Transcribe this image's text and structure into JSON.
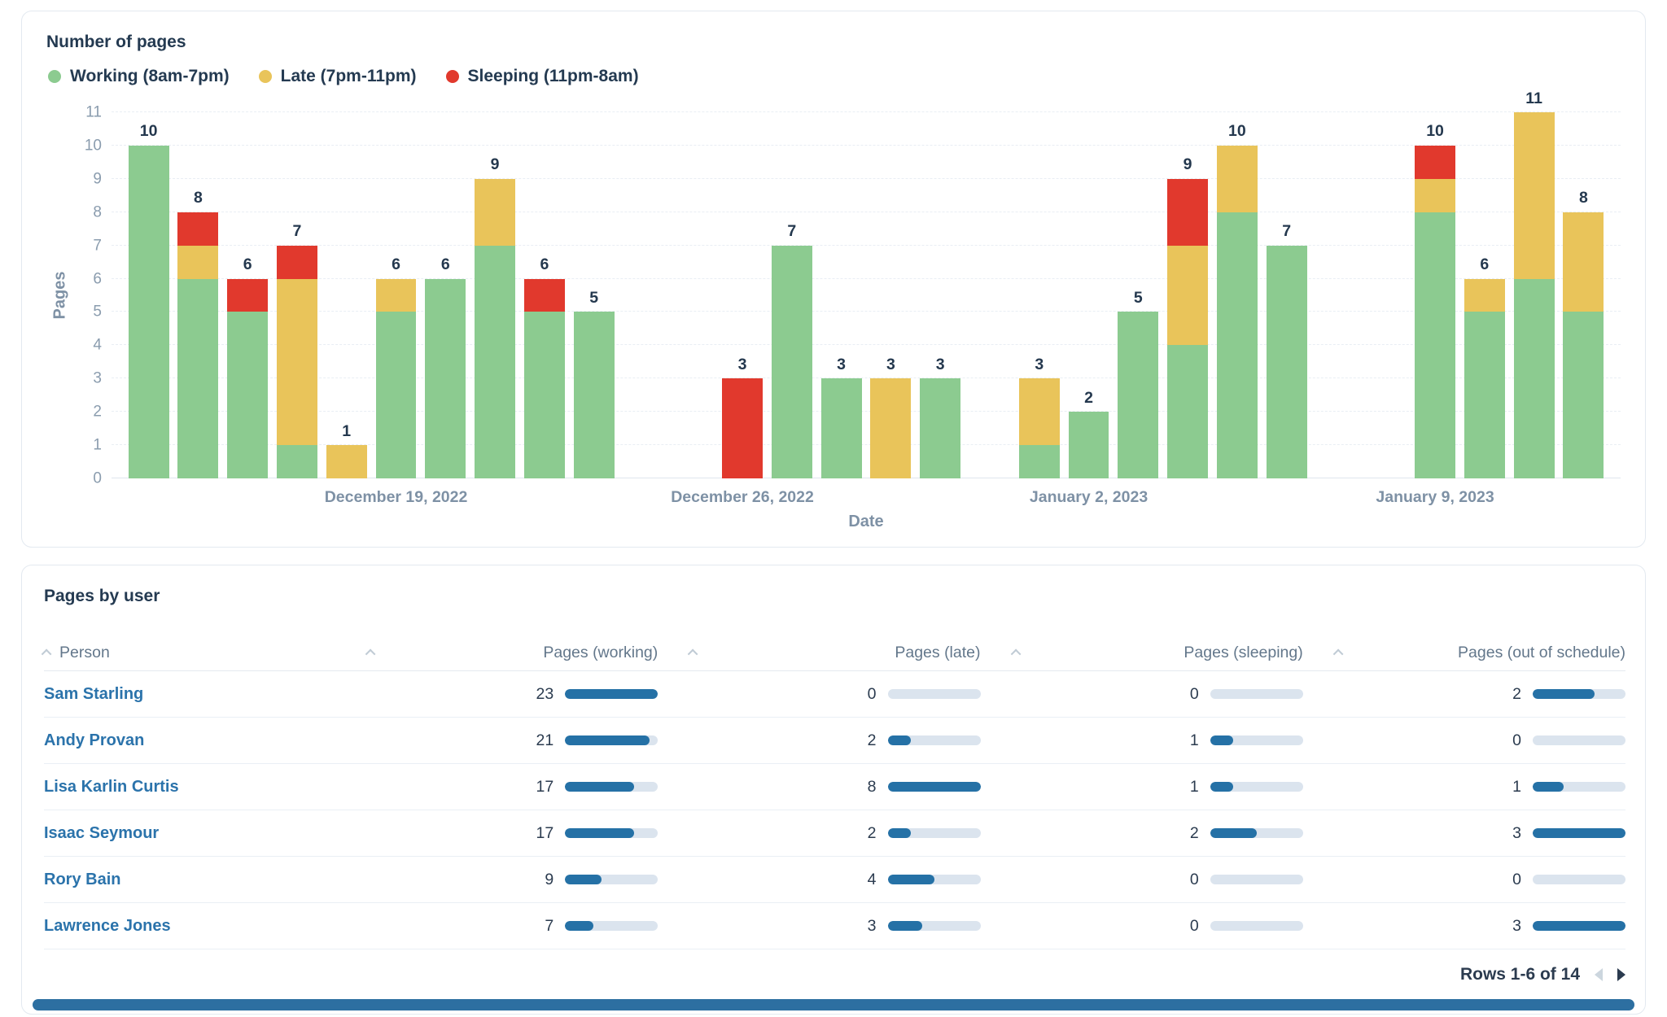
{
  "colors": {
    "working": "#8ccb90",
    "late": "#e9c45a",
    "sleeping": "#e1392d",
    "table_bar_fill": "#2571a6",
    "table_bar_track": "#dbe4ee",
    "link_blue": "#2b73ab",
    "heading_navy": "#243a51",
    "axis_gray": "#7e91a5"
  },
  "chart_panel": {
    "title": "Number of pages",
    "ylabel": "Pages",
    "xlabel": "Date",
    "legend": [
      {
        "series": "working",
        "label": "Working (8am-7pm)"
      },
      {
        "series": "late",
        "label": "Late (7pm-11pm)"
      },
      {
        "series": "sleeping",
        "label": "Sleeping (11pm-8am)"
      }
    ]
  },
  "chart_data": {
    "type": "bar",
    "stacked": true,
    "title": "Number of pages",
    "xlabel": "Date",
    "ylabel": "Pages",
    "ylim": [
      0,
      11
    ],
    "y_ticks": [
      0,
      1,
      2,
      3,
      4,
      5,
      6,
      7,
      8,
      9,
      10,
      11
    ],
    "x_slots": 30.5,
    "grid": "dashed-horizontal",
    "legend_position": "top-left",
    "series_names": [
      "Working (8am-7pm)",
      "Late (7pm-11pm)",
      "Sleeping (11pm-8am)"
    ],
    "x_ticks": [
      {
        "slot": 5,
        "label": "December 19, 2022"
      },
      {
        "slot": 12,
        "label": "December 26, 2022"
      },
      {
        "slot": 19,
        "label": "January 2, 2023"
      },
      {
        "slot": 26,
        "label": "January 9, 2023"
      }
    ],
    "bars": [
      {
        "slot": 0,
        "working": 10,
        "late": 0,
        "sleeping": 0,
        "total": 10
      },
      {
        "slot": 1,
        "working": 6,
        "late": 1,
        "sleeping": 1,
        "total": 8
      },
      {
        "slot": 2,
        "working": 5,
        "late": 0,
        "sleeping": 1,
        "total": 6
      },
      {
        "slot": 3,
        "working": 1,
        "late": 5,
        "sleeping": 1,
        "total": 7
      },
      {
        "slot": 4,
        "working": 0,
        "late": 1,
        "sleeping": 0,
        "total": 1
      },
      {
        "slot": 5,
        "working": 5,
        "late": 1,
        "sleeping": 0,
        "total": 6
      },
      {
        "slot": 6,
        "working": 6,
        "late": 0,
        "sleeping": 0,
        "total": 6
      },
      {
        "slot": 7,
        "working": 7,
        "late": 2,
        "sleeping": 0,
        "total": 9
      },
      {
        "slot": 8,
        "working": 5,
        "late": 0,
        "sleeping": 1,
        "total": 6
      },
      {
        "slot": 9,
        "working": 5,
        "late": 0,
        "sleeping": 0,
        "total": 5
      },
      {
        "slot": 12,
        "working": 0,
        "late": 0,
        "sleeping": 3,
        "total": 3
      },
      {
        "slot": 13,
        "working": 7,
        "late": 0,
        "sleeping": 0,
        "total": 7
      },
      {
        "slot": 14,
        "working": 3,
        "late": 0,
        "sleeping": 0,
        "total": 3
      },
      {
        "slot": 15,
        "working": 0,
        "late": 3,
        "sleeping": 0,
        "total": 3
      },
      {
        "slot": 16,
        "working": 3,
        "late": 0,
        "sleeping": 0,
        "total": 3
      },
      {
        "slot": 18,
        "working": 1,
        "late": 2,
        "sleeping": 0,
        "total": 3
      },
      {
        "slot": 19,
        "working": 2,
        "late": 0,
        "sleeping": 0,
        "total": 2
      },
      {
        "slot": 20,
        "working": 5,
        "late": 0,
        "sleeping": 0,
        "total": 5
      },
      {
        "slot": 21,
        "working": 4,
        "late": 3,
        "sleeping": 2,
        "total": 9
      },
      {
        "slot": 22,
        "working": 8,
        "late": 2,
        "sleeping": 0,
        "total": 10
      },
      {
        "slot": 23,
        "working": 7,
        "late": 0,
        "sleeping": 0,
        "total": 7
      },
      {
        "slot": 26,
        "working": 8,
        "late": 1,
        "sleeping": 1,
        "total": 10
      },
      {
        "slot": 27,
        "working": 5,
        "late": 1,
        "sleeping": 0,
        "total": 6
      },
      {
        "slot": 28,
        "working": 6,
        "late": 5,
        "sleeping": 0,
        "total": 11
      },
      {
        "slot": 29,
        "working": 5,
        "late": 3,
        "sleeping": 0,
        "total": 8
      }
    ]
  },
  "table_panel": {
    "title": "Pages by user",
    "columns": [
      {
        "key": "person",
        "label": "Person"
      },
      {
        "key": "working",
        "label": "Pages (working)"
      },
      {
        "key": "late",
        "label": "Pages (late)"
      },
      {
        "key": "sleeping",
        "label": "Pages (sleeping)"
      },
      {
        "key": "out",
        "label": "Pages (out of schedule)"
      }
    ],
    "bar_scale_max": {
      "working": 23,
      "late": 8,
      "sleeping": 4,
      "out": 3
    },
    "rows": [
      {
        "person": "Sam Starling",
        "working": 23,
        "late": 0,
        "sleeping": 0,
        "out": 2
      },
      {
        "person": "Andy Provan",
        "working": 21,
        "late": 2,
        "sleeping": 1,
        "out": 0
      },
      {
        "person": "Lisa Karlin Curtis",
        "working": 17,
        "late": 8,
        "sleeping": 1,
        "out": 1
      },
      {
        "person": "Isaac Seymour",
        "working": 17,
        "late": 2,
        "sleeping": 2,
        "out": 3
      },
      {
        "person": "Rory Bain",
        "working": 9,
        "late": 4,
        "sleeping": 0,
        "out": 0
      },
      {
        "person": "Lawrence Jones",
        "working": 7,
        "late": 3,
        "sleeping": 0,
        "out": 3
      }
    ],
    "pagination": {
      "label": "Rows 1-6 of 14"
    }
  }
}
